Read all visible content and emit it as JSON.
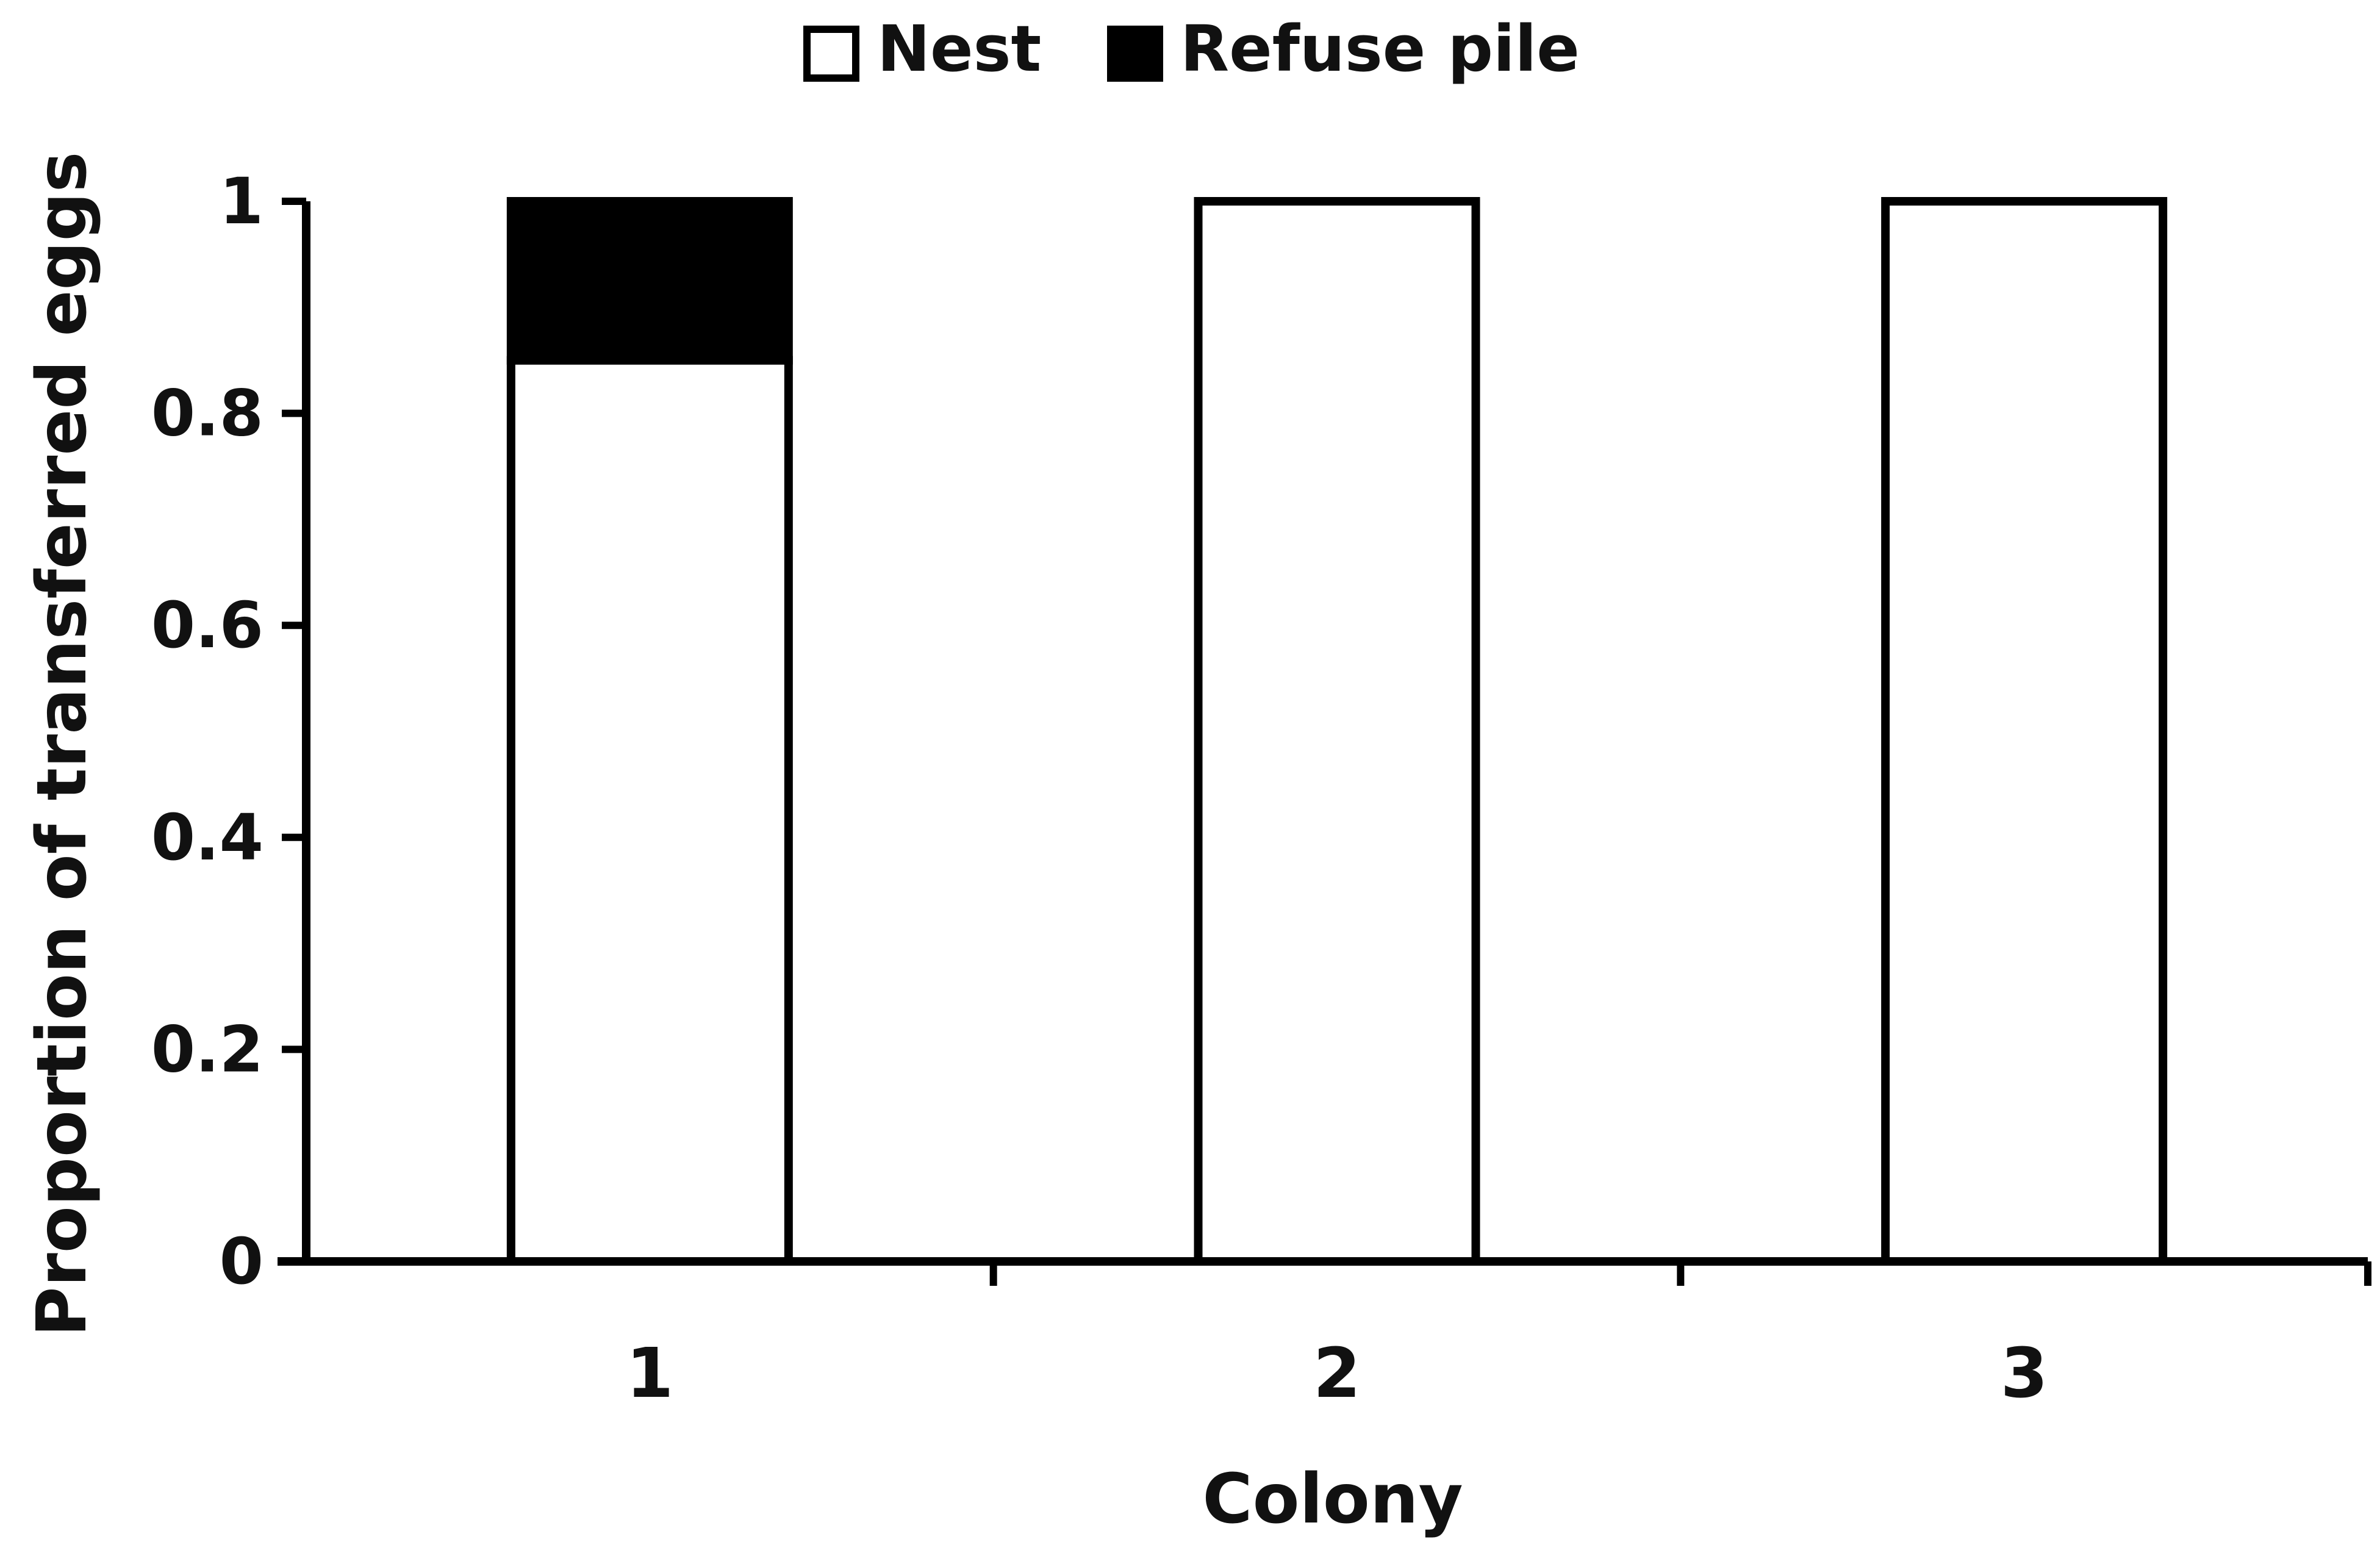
{
  "chart_data": {
    "type": "bar",
    "stacked": true,
    "categories": [
      "1",
      "2",
      "3"
    ],
    "series": [
      {
        "name": "Nest",
        "values": [
          0.85,
          1,
          1
        ],
        "color": "#ffffff"
      },
      {
        "name": "Refuse pile",
        "values": [
          0.15,
          0,
          0
        ],
        "color": "#000000"
      }
    ],
    "title": "",
    "xlabel": "Colony",
    "ylabel": "Proportion of transferred eggs",
    "ylim": [
      0,
      1
    ],
    "yticks": [
      "0",
      "0.2",
      "0.4",
      "0.6",
      "0.8",
      "1"
    ],
    "grid": false,
    "legend_position": "top-center"
  }
}
